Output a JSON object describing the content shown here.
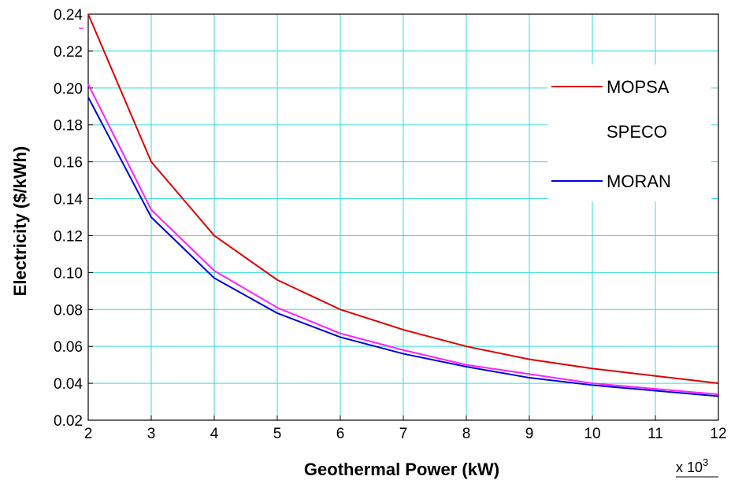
{
  "chart_data": {
    "type": "line",
    "xlabel": "Geothermal Power (kW)",
    "ylabel": "Electricity  ($/kWh)",
    "x_multiplier": "x 10",
    "x_multiplier_exp": "3",
    "xlim": [
      2,
      12
    ],
    "ylim": [
      0.02,
      0.24
    ],
    "x_ticks": [
      2,
      3,
      4,
      5,
      6,
      7,
      8,
      9,
      10,
      11,
      12
    ],
    "y_ticks": [
      0.02,
      0.04,
      0.06,
      0.08,
      0.1,
      0.12,
      0.14,
      0.16,
      0.18,
      0.2,
      0.22,
      0.24
    ],
    "y_tick_labels": [
      "0.02",
      "0.04",
      "0.06",
      "0.08",
      "0.10",
      "0.12",
      "0.14",
      "0.16",
      "0.18",
      "0.20",
      "0.22",
      "0.24"
    ],
    "x": [
      2,
      3,
      4,
      5,
      6,
      7,
      8,
      9,
      10,
      11,
      12
    ],
    "grid": true,
    "legend_position": "top-right",
    "series": [
      {
        "name": "MOPSA",
        "color": "#e00000",
        "values": [
          0.24,
          0.16,
          0.12,
          0.096,
          0.08,
          0.069,
          0.06,
          0.053,
          0.048,
          0.044,
          0.04
        ]
      },
      {
        "name": "SPECO",
        "color": "#ff22ff",
        "values": [
          0.202,
          0.134,
          0.101,
          0.081,
          0.067,
          0.058,
          0.05,
          0.045,
          0.04,
          0.037,
          0.034
        ]
      },
      {
        "name": "MORAN",
        "color": "#0000e0",
        "values": [
          0.195,
          0.13,
          0.097,
          0.078,
          0.065,
          0.056,
          0.049,
          0.043,
          0.039,
          0.036,
          0.033
        ]
      }
    ],
    "colors": {
      "grid": "#33dddd",
      "axis": "#000000"
    }
  }
}
